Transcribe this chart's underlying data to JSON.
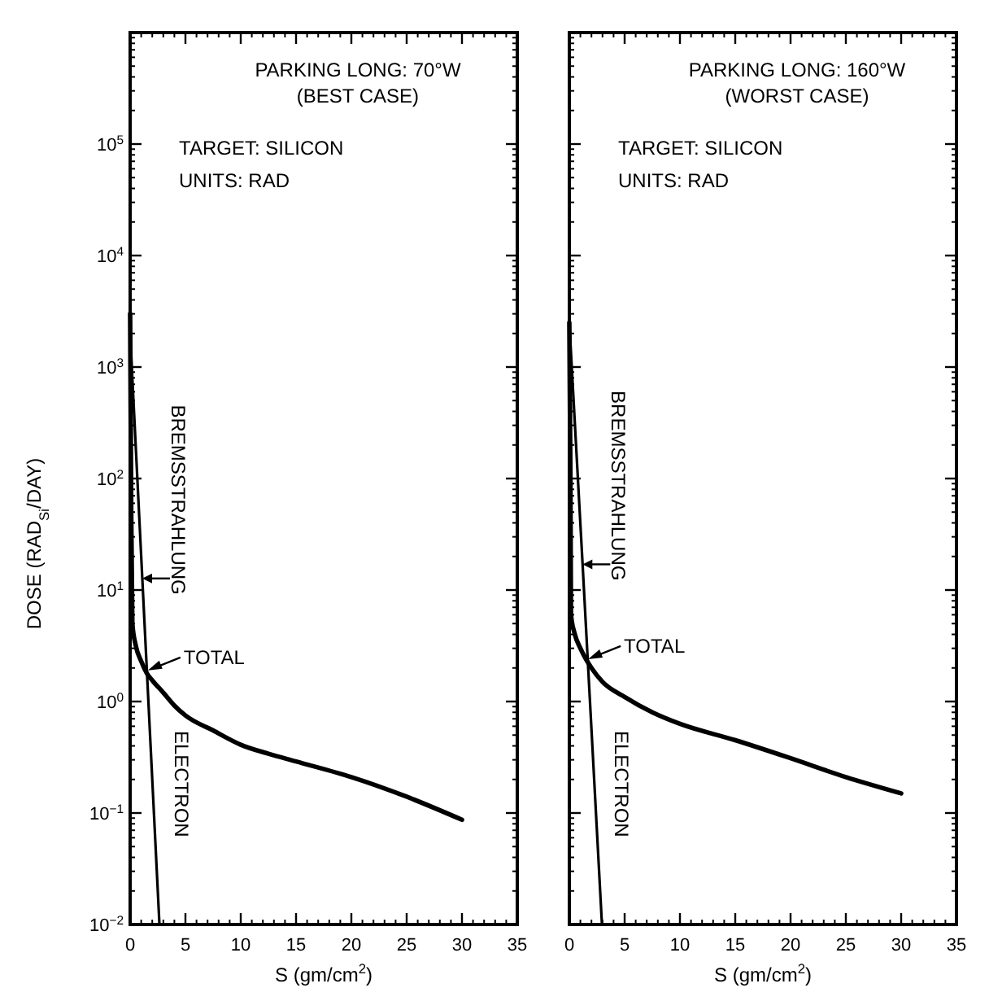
{
  "chart_data": [
    {
      "type": "line",
      "title": "PARKING LONG: 70°W",
      "subtitle": "(BEST CASE)",
      "xlabel": "S (gm/cm$^{2}$)",
      "ylabel": "DOSE (RAD$_{Si}$/DAY)",
      "log": "y",
      "grid": false,
      "xlim": [
        0,
        35
      ],
      "ylim": [
        0.01,
        1000000
      ],
      "xticks": [
        0,
        5,
        10,
        15,
        20,
        25,
        30,
        35
      ],
      "yticks": [
        {
          "value": 0.01,
          "label": "10$^{−2}$"
        },
        {
          "value": 0.1,
          "label": "10$^{−1}$"
        },
        {
          "value": 1,
          "label": "10$^{0}$"
        },
        {
          "value": 10,
          "label": "10$^{1}$"
        },
        {
          "value": 100,
          "label": "10$^{2}$"
        },
        {
          "value": 1000,
          "label": "10$^{3}$"
        },
        {
          "value": 10000,
          "label": "10$^{4}$"
        },
        {
          "value": 100000,
          "label": "10$^{5}$"
        }
      ],
      "annotations": [
        "TARGET: SILICON",
        "UNITS: RAD",
        {
          "text": "BREMSSTRAHLUNG",
          "x": 1.1,
          "y": 12.7
        },
        {
          "text": "TOTAL",
          "x": 1.6,
          "y": 1.9
        },
        "ELECTRON"
      ],
      "series": [
        {
          "color": "#000000",
          "x": [
            0,
            0.1,
            0.2,
            0.5,
            1,
            1.5,
            2,
            3,
            4,
            5,
            7.5,
            10,
            12.5,
            15,
            20,
            25,
            30
          ],
          "values": [
            3000,
            50,
            5,
            3.2,
            2.3,
            1.8,
            1.55,
            1.2,
            0.92,
            0.75,
            0.55,
            0.41,
            0.34,
            0.29,
            0.21,
            0.14,
            0.087
          ]
        },
        {
          "color": "#000000",
          "x": [
            0,
            1.1,
            2.65
          ],
          "values": [
            2000,
            12.7,
            0.01
          ]
        }
      ]
    },
    {
      "type": "line",
      "title": "PARKING LONG: 160°W",
      "subtitle": "(WORST CASE)",
      "xlabel": "S (gm/cm$^{2}$)",
      "log": "y",
      "grid": false,
      "tick_labels": "x",
      "xlim": [
        0,
        35
      ],
      "ylim": [
        0.01,
        1000000
      ],
      "xticks": [
        0,
        5,
        10,
        15,
        20,
        25,
        30,
        35
      ],
      "yticks": [
        {
          "value": 0.01,
          "label": null
        },
        {
          "value": 0.1,
          "label": null
        },
        {
          "value": 1,
          "label": null
        },
        {
          "value": 10,
          "label": null
        },
        {
          "value": 100,
          "label": null
        },
        {
          "value": 1000,
          "label": null
        },
        {
          "value": 10000,
          "label": null
        },
        {
          "value": 100000,
          "label": null
        }
      ],
      "annotations": [
        "TARGET: SILICON",
        "UNITS: RAD",
        {
          "text": "BREMSSTRAHLUNG",
          "x": 1.2,
          "y": 17
        },
        {
          "text": "TOTAL",
          "x": 1.7,
          "y": 2.4
        },
        "ELECTRON"
      ],
      "series": [
        {
          "color": "#000000",
          "x": [
            0,
            0.1,
            0.15,
            0.5,
            1,
            1.5,
            2,
            3,
            5,
            7.5,
            10,
            15,
            20,
            25,
            30
          ],
          "values": [
            2500,
            100,
            6,
            4,
            3,
            2.4,
            2,
            1.5,
            1.1,
            0.8,
            0.63,
            0.45,
            0.31,
            0.21,
            0.15
          ]
        },
        {
          "color": "#000000",
          "x": [
            0,
            1.2,
            2.95
          ],
          "values": [
            2500,
            17,
            0.01
          ]
        }
      ]
    }
  ]
}
